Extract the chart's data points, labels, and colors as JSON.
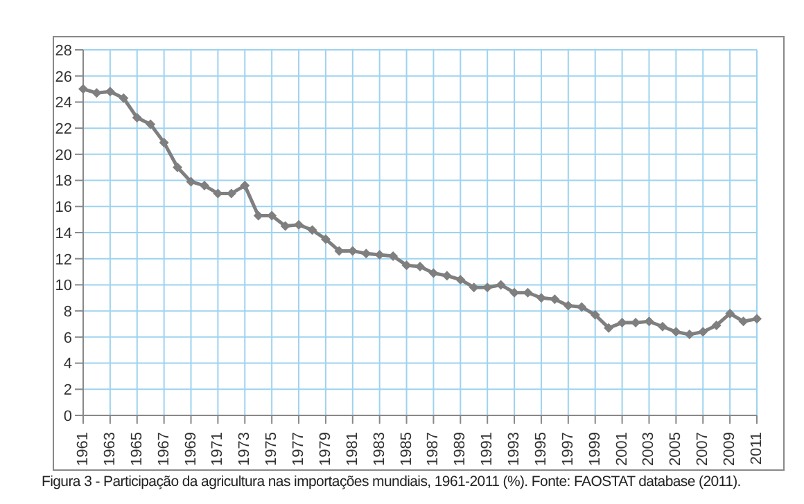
{
  "chart_data": {
    "type": "line",
    "categories": [
      "1961",
      null,
      "1963",
      null,
      "1965",
      null,
      "1967",
      null,
      "1969",
      null,
      "1971",
      null,
      "1973",
      null,
      "1975",
      null,
      "1977",
      null,
      "1979",
      null,
      "1981",
      null,
      "1983",
      null,
      "1985",
      null,
      "1987",
      null,
      "1989",
      null,
      "1991",
      null,
      "1993",
      null,
      "1995",
      null,
      "1997",
      null,
      "1999",
      null,
      "2001",
      null,
      "2003",
      null,
      "2005",
      null,
      "2007",
      null,
      "2009",
      null,
      "2011"
    ],
    "series": [
      {
        "color": "#7f7f7f",
        "values": [
          25.0,
          24.7,
          24.8,
          24.3,
          22.8,
          22.3,
          20.9,
          19.0,
          17.9,
          17.6,
          17.0,
          17.0,
          17.6,
          15.3,
          15.3,
          14.5,
          14.6,
          14.2,
          13.5,
          12.6,
          12.6,
          12.4,
          12.3,
          12.2,
          11.5,
          11.4,
          10.9,
          10.7,
          10.4,
          9.8,
          9.8,
          10.0,
          9.4,
          9.4,
          9.0,
          8.9,
          8.4,
          8.3,
          7.7,
          6.7,
          7.1,
          7.1,
          7.2,
          6.8,
          6.4,
          6.2,
          6.4,
          6.9,
          7.8,
          7.2,
          7.4
        ]
      }
    ],
    "ylim": [
      0,
      28
    ],
    "yticks": [
      0,
      2,
      4,
      6,
      8,
      10,
      12,
      14,
      16,
      18,
      20,
      22,
      24,
      26,
      28
    ],
    "grid": true,
    "marker": "diamond",
    "line_style": "solid",
    "annotations": [
      "Figura 3 - Participação da agricultura nas importações mundiais, 1961-2011 (%). Fonte: FAOSTAT database (2011)."
    ]
  }
}
